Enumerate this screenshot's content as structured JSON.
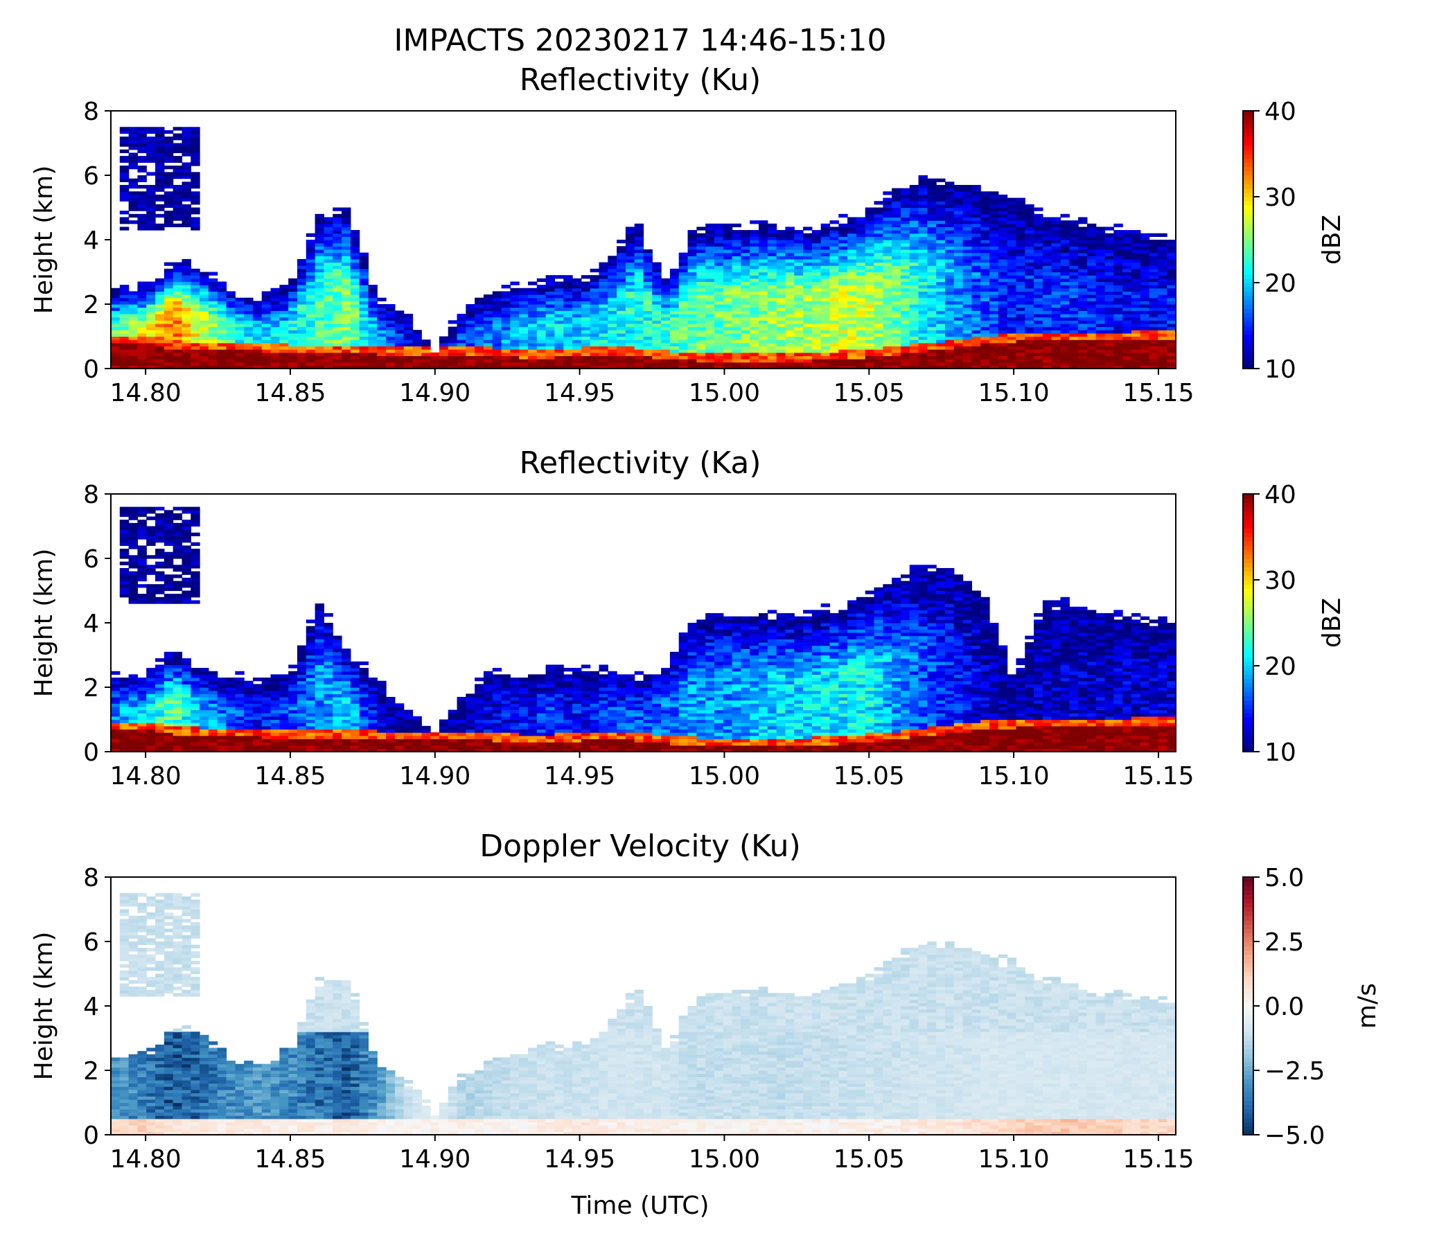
{
  "figure": {
    "title": "IMPACTS 20230217 14:46-15:10"
  },
  "chart_data": [
    {
      "type": "heatmap",
      "title": "Reflectivity (Ku)",
      "xlabel": "",
      "ylabel": "Height (km)",
      "xlim": [
        14.788,
        15.156
      ],
      "ylim": [
        0,
        8
      ],
      "xticks": [
        "14.80",
        "14.85",
        "14.90",
        "14.95",
        "15.00",
        "15.05",
        "15.10",
        "15.15"
      ],
      "xtick_values": [
        14.8,
        14.85,
        14.9,
        14.95,
        15.0,
        15.05,
        15.1,
        15.15
      ],
      "yticks": [
        "0",
        "2",
        "4",
        "6",
        "8"
      ],
      "ytick_values": [
        0,
        2,
        4,
        6,
        8
      ],
      "colormap": "jet",
      "colorbar": {
        "label": "dBZ",
        "range": [
          10,
          40
        ],
        "ticks": [
          "10",
          "20",
          "30",
          "40"
        ],
        "tick_values": [
          10,
          20,
          30,
          40
        ]
      },
      "profile": {
        "time": [
          14.79,
          14.8,
          14.81,
          14.82,
          14.83,
          14.84,
          14.85,
          14.86,
          14.87,
          14.88,
          14.89,
          14.9,
          14.91,
          14.92,
          14.93,
          14.94,
          14.95,
          14.96,
          14.97,
          14.98,
          14.99,
          15.0,
          15.01,
          15.02,
          15.03,
          15.04,
          15.05,
          15.06,
          15.07,
          15.08,
          15.09,
          15.1,
          15.11,
          15.12,
          15.13,
          15.14,
          15.15
        ],
        "echo_top_km": [
          2.5,
          2.5,
          3.4,
          3.1,
          2.4,
          2.2,
          2.6,
          4.8,
          4.9,
          2.2,
          1.7,
          0.6,
          1.9,
          2.4,
          2.6,
          2.8,
          2.7,
          3.3,
          4.6,
          2.6,
          4.4,
          4.4,
          4.5,
          4.4,
          4.3,
          4.6,
          4.9,
          5.6,
          5.9,
          5.8,
          5.6,
          5.3,
          4.8,
          4.7,
          4.4,
          4.3,
          4.1
        ],
        "core_dbz": [
          24,
          29,
          33,
          27,
          23,
          19,
          21,
          23,
          25,
          18,
          14,
          12,
          16,
          17,
          19,
          20,
          20,
          21,
          22,
          23,
          24,
          24,
          25,
          26,
          26,
          27,
          27,
          24,
          21,
          18,
          16,
          14,
          15,
          15,
          14,
          14,
          14
        ],
        "bright_band_km": [
          0.8,
          0.8,
          0.6,
          0.6,
          0.6,
          0.55,
          0.5,
          0.5,
          0.5,
          0.45,
          0.4,
          0.45,
          0.45,
          0.4,
          0.35,
          0.35,
          0.4,
          0.45,
          0.4,
          0.3,
          0.25,
          0.25,
          0.25,
          0.25,
          0.25,
          0.3,
          0.35,
          0.45,
          0.55,
          0.65,
          0.75,
          0.85,
          0.9,
          0.9,
          0.9,
          0.9,
          0.95
        ],
        "aloft_layer": [
          [
            14.79,
            14.82,
            4.3,
            7.5
          ]
        ]
      }
    },
    {
      "type": "heatmap",
      "title": "Reflectivity (Ka)",
      "xlabel": "",
      "ylabel": "Height (km)",
      "xlim": [
        14.788,
        15.156
      ],
      "ylim": [
        0,
        8
      ],
      "xticks": [
        "14.80",
        "14.85",
        "14.90",
        "14.95",
        "15.00",
        "15.05",
        "15.10",
        "15.15"
      ],
      "xtick_values": [
        14.8,
        14.85,
        14.9,
        14.95,
        15.0,
        15.05,
        15.1,
        15.15
      ],
      "yticks": [
        "0",
        "2",
        "4",
        "6",
        "8"
      ],
      "ytick_values": [
        0,
        2,
        4,
        6,
        8
      ],
      "colormap": "jet",
      "colorbar": {
        "label": "dBZ",
        "range": [
          10,
          40
        ],
        "ticks": [
          "10",
          "20",
          "30",
          "40"
        ],
        "tick_values": [
          10,
          20,
          30,
          40
        ]
      },
      "profile": {
        "time": [
          14.79,
          14.8,
          14.81,
          14.82,
          14.83,
          14.84,
          14.85,
          14.86,
          14.87,
          14.88,
          14.89,
          14.9,
          14.91,
          14.92,
          14.93,
          14.94,
          14.95,
          14.96,
          14.97,
          14.98,
          14.99,
          15.0,
          15.01,
          15.02,
          15.03,
          15.04,
          15.05,
          15.06,
          15.07,
          15.08,
          15.09,
          15.1,
          15.11,
          15.12,
          15.13,
          15.14,
          15.15
        ],
        "echo_top_km": [
          2.4,
          2.4,
          3.1,
          2.6,
          2.3,
          2.2,
          2.4,
          4.6,
          3.1,
          2.2,
          1.3,
          0.6,
          1.7,
          2.5,
          2.4,
          2.6,
          2.5,
          2.6,
          2.3,
          2.6,
          4.2,
          4.2,
          4.3,
          4.2,
          4.3,
          4.5,
          4.9,
          5.4,
          5.8,
          5.6,
          4.8,
          2.2,
          4.6,
          4.6,
          4.3,
          4.2,
          4.1
        ],
        "core_dbz": [
          18,
          21,
          24,
          19,
          16,
          14,
          16,
          18,
          20,
          13,
          11,
          10,
          12,
          13,
          14,
          15,
          14,
          15,
          16,
          17,
          18,
          18,
          19,
          20,
          20,
          21,
          21,
          18,
          16,
          14,
          12,
          11,
          12,
          12,
          12,
          12,
          12
        ],
        "bright_band_km": [
          0.7,
          0.7,
          0.55,
          0.5,
          0.5,
          0.45,
          0.45,
          0.45,
          0.45,
          0.4,
          0.35,
          0.4,
          0.4,
          0.35,
          0.3,
          0.3,
          0.35,
          0.4,
          0.35,
          0.25,
          0.2,
          0.2,
          0.2,
          0.2,
          0.2,
          0.25,
          0.3,
          0.4,
          0.5,
          0.6,
          0.7,
          0.75,
          0.8,
          0.8,
          0.8,
          0.8,
          0.85
        ],
        "aloft_layer": [
          [
            14.79,
            14.82,
            4.6,
            7.6
          ]
        ]
      }
    },
    {
      "type": "heatmap",
      "title": "Doppler Velocity (Ku)",
      "xlabel": "Time (UTC)",
      "ylabel": "Height (km)",
      "xlim": [
        14.788,
        15.156
      ],
      "ylim": [
        0,
        8
      ],
      "xticks": [
        "14.80",
        "14.85",
        "14.90",
        "14.95",
        "15.00",
        "15.05",
        "15.10",
        "15.15"
      ],
      "xtick_values": [
        14.8,
        14.85,
        14.9,
        14.95,
        15.0,
        15.05,
        15.1,
        15.15
      ],
      "yticks": [
        "0",
        "2",
        "4",
        "6",
        "8"
      ],
      "ytick_values": [
        0,
        2,
        4,
        6,
        8
      ],
      "colormap": "RdBu_r",
      "colorbar": {
        "label": "m/s",
        "range": [
          -5.0,
          5.0
        ],
        "ticks": [
          "−5.0",
          "−2.5",
          "0.0",
          "2.5",
          "5.0"
        ],
        "tick_values": [
          -5.0,
          -2.5,
          0.0,
          2.5,
          5.0
        ]
      },
      "profile": {
        "time": [
          14.79,
          14.8,
          14.81,
          14.82,
          14.83,
          14.84,
          14.85,
          14.86,
          14.87,
          14.88,
          14.89,
          14.9,
          14.91,
          14.92,
          14.93,
          14.94,
          14.95,
          14.96,
          14.97,
          14.98,
          14.99,
          15.0,
          15.01,
          15.02,
          15.03,
          15.04,
          15.05,
          15.06,
          15.07,
          15.08,
          15.09,
          15.1,
          15.11,
          15.12,
          15.13,
          15.14,
          15.15
        ],
        "echo_top_km": [
          2.5,
          2.5,
          3.4,
          3.1,
          2.4,
          2.2,
          2.6,
          4.8,
          4.9,
          2.2,
          1.7,
          0.6,
          1.9,
          2.4,
          2.6,
          2.8,
          2.7,
          3.3,
          4.6,
          2.6,
          4.4,
          4.4,
          4.5,
          4.4,
          4.3,
          4.6,
          4.9,
          5.6,
          5.9,
          5.8,
          5.6,
          5.3,
          4.8,
          4.7,
          4.4,
          4.3,
          4.1
        ],
        "core_velocity": [
          -3.0,
          -3.6,
          -4.4,
          -3.8,
          -3.4,
          -3.0,
          -3.3,
          -3.8,
          -4.2,
          -3.0,
          -1.2,
          -0.5,
          -1.6,
          -1.3,
          -1.2,
          -1.1,
          -1.1,
          -1.0,
          -1.0,
          -1.0,
          -1.3,
          -1.2,
          -1.2,
          -1.3,
          -1.2,
          -1.2,
          -1.1,
          -1.1,
          -1.0,
          -1.0,
          -0.9,
          -0.9,
          -0.9,
          -0.9,
          -0.9,
          -0.9,
          -0.9
        ],
        "near_surface_velocity": [
          0.9,
          1.1,
          0.6,
          0.5,
          0.4,
          0.4,
          0.3,
          0.4,
          0.5,
          0.2,
          0.1,
          0.2,
          0.3,
          0.1,
          0.2,
          0.3,
          0.6,
          0.4,
          0.3,
          0.2,
          0.2,
          0.1,
          0.2,
          0.2,
          0.2,
          0.2,
          0.3,
          0.3,
          0.5,
          0.6,
          0.9,
          1.1,
          1.3,
          1.4,
          1.2,
          1.0,
          1.0
        ],
        "aloft_layer": [
          [
            14.79,
            14.82,
            4.3,
            7.5
          ]
        ]
      }
    }
  ]
}
